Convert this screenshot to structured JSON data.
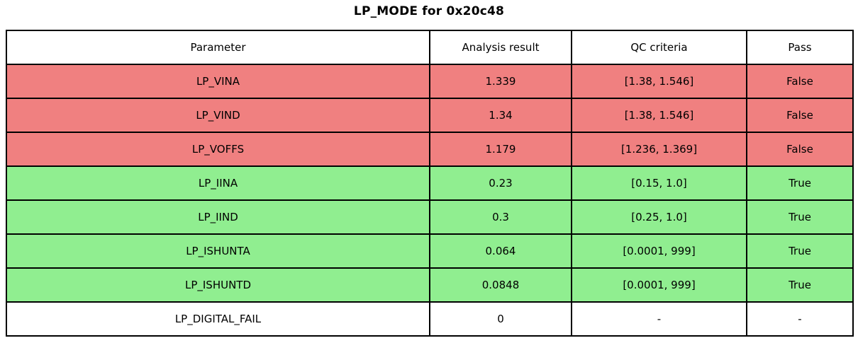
{
  "title": "LP_MODE for 0x20c48",
  "colors": {
    "fail": "#f08080",
    "pass": "#90ee90",
    "none": "#ffffff",
    "border": "#000000",
    "header_bg": "#ffffff",
    "text": "#000000"
  },
  "chart_data": {
    "type": "table",
    "title": "LP_MODE for 0x20c48",
    "columns": [
      "Parameter",
      "Analysis result",
      "QC criteria",
      "Pass"
    ],
    "rows": [
      {
        "parameter": "LP_VINA",
        "result": "1.339",
        "criteria": "[1.38, 1.546]",
        "pass": "False",
        "status": "fail"
      },
      {
        "parameter": "LP_VIND",
        "result": "1.34",
        "criteria": "[1.38, 1.546]",
        "pass": "False",
        "status": "fail"
      },
      {
        "parameter": "LP_VOFFS",
        "result": "1.179",
        "criteria": "[1.236, 1.369]",
        "pass": "False",
        "status": "fail"
      },
      {
        "parameter": "LP_IINA",
        "result": "0.23",
        "criteria": "[0.15, 1.0]",
        "pass": "True",
        "status": "pass"
      },
      {
        "parameter": "LP_IIND",
        "result": "0.3",
        "criteria": "[0.25, 1.0]",
        "pass": "True",
        "status": "pass"
      },
      {
        "parameter": "LP_ISHUNTA",
        "result": "0.064",
        "criteria": "[0.0001, 999]",
        "pass": "True",
        "status": "pass"
      },
      {
        "parameter": "LP_ISHUNTD",
        "result": "0.0848",
        "criteria": "[0.0001, 999]",
        "pass": "True",
        "status": "pass"
      },
      {
        "parameter": "LP_DIGITAL_FAIL",
        "result": "0",
        "criteria": "-",
        "pass": "-",
        "status": "none"
      }
    ]
  }
}
